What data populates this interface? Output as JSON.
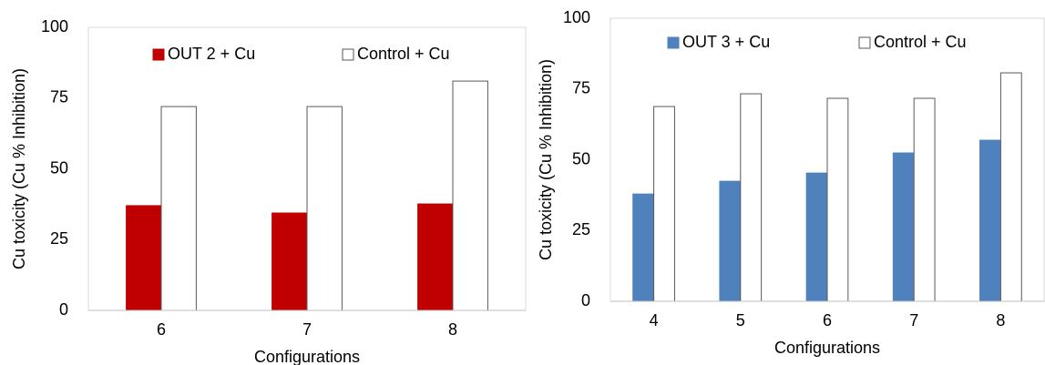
{
  "chart_data": [
    {
      "type": "bar",
      "y_label": "Cu toxicity (Cu  % Inhibition)",
      "x_label": "Configurations",
      "categories": [
        "6",
        "7",
        "8"
      ],
      "series": [
        {
          "name": "OUT 2 + Cu",
          "color": "#c00000",
          "values": [
            37.0,
            34.4,
            37.6
          ]
        },
        {
          "name": "Control + Cu",
          "color": "#ffffff",
          "values": [
            72.0,
            72.0,
            81.0
          ]
        }
      ],
      "ylim": [
        0,
        100
      ],
      "yticks": [
        0,
        25,
        50,
        75,
        100
      ],
      "grid": false
    },
    {
      "type": "bar",
      "y_label": "Cu toxicity (Cu  % Inhibition)",
      "x_label": "Configurations",
      "categories": [
        "4",
        "5",
        "6",
        "7",
        "8"
      ],
      "series": [
        {
          "name": "OUT 3 + Cu",
          "color": "#4f81bd",
          "values": [
            37.9,
            42.4,
            45.3,
            52.4,
            56.9
          ]
        },
        {
          "name": "Control + Cu",
          "color": "#ffffff",
          "values": [
            68.8,
            73.3,
            71.7,
            71.7,
            80.7
          ]
        }
      ],
      "ylim": [
        0,
        100
      ],
      "yticks": [
        0,
        25,
        50,
        75,
        100
      ],
      "grid": false
    }
  ]
}
